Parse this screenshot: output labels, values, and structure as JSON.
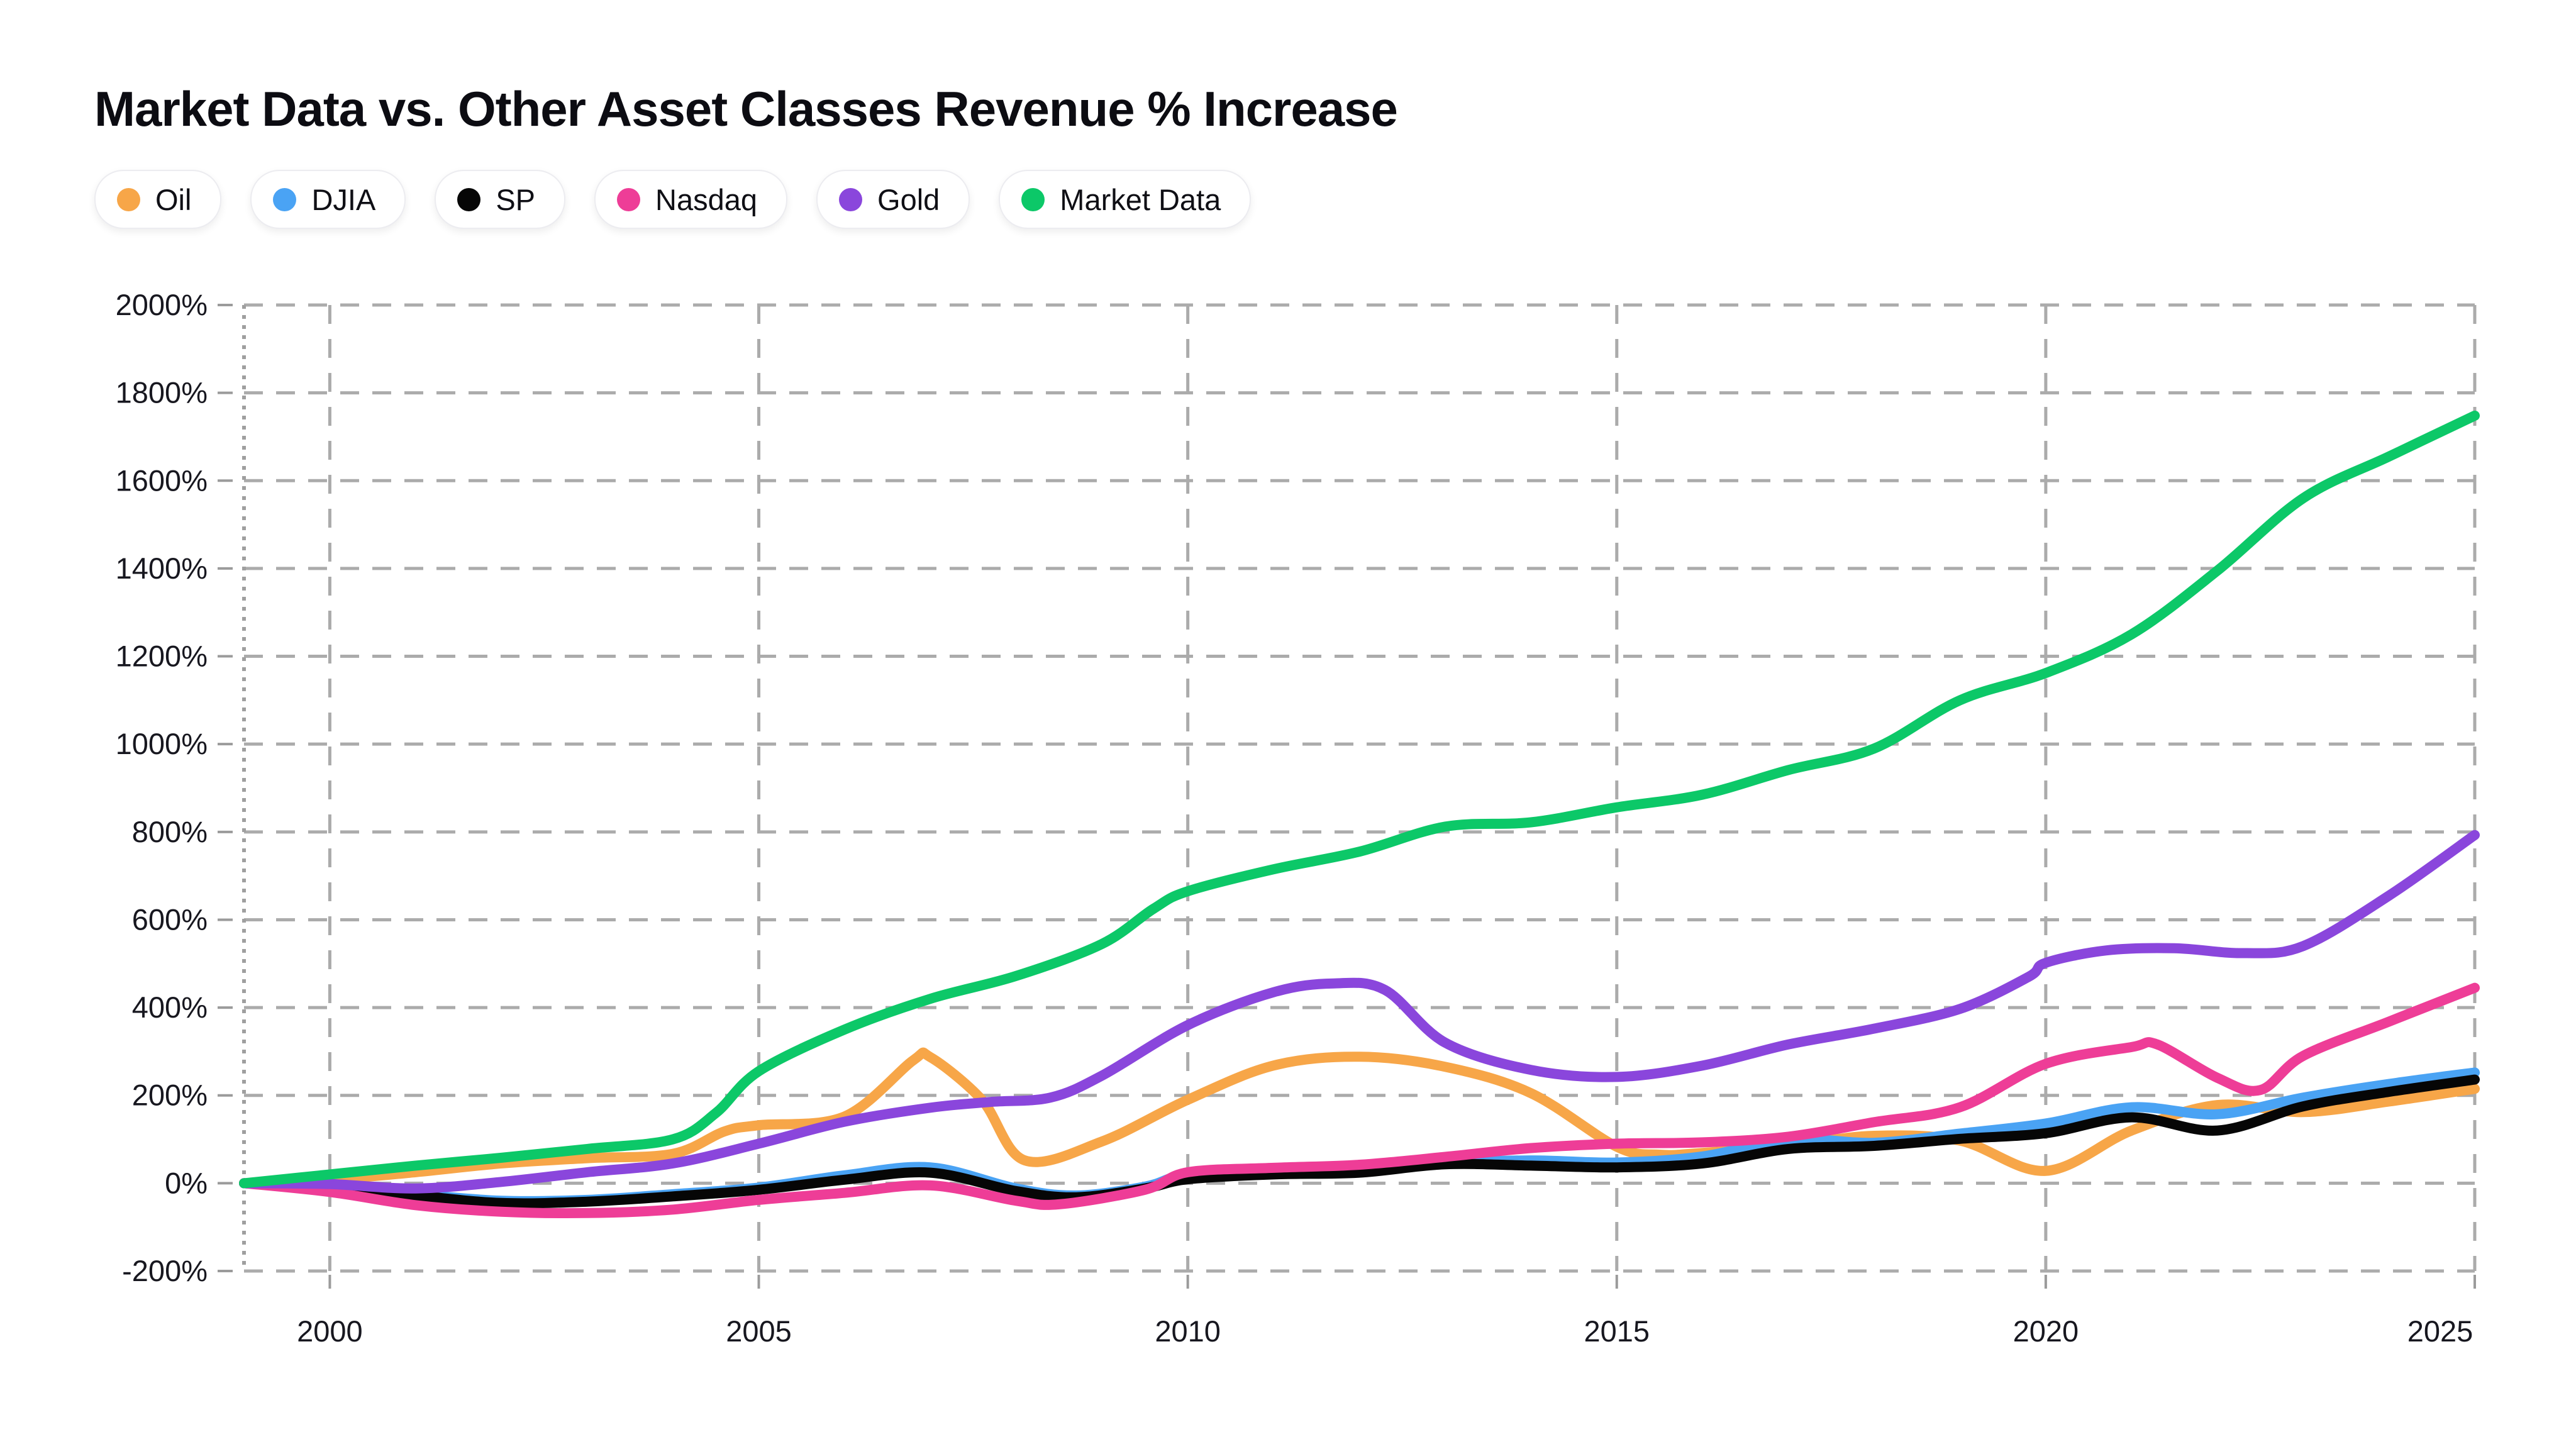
{
  "page": {
    "background": "#ffffff"
  },
  "legend": {
    "items": [
      {
        "label": "Oil",
        "color": "#F7A648"
      },
      {
        "label": "DJIA",
        "color": "#4AA3F4"
      },
      {
        "label": "SP",
        "color": "#060606"
      },
      {
        "label": "Nasdaq",
        "color": "#EE3D97"
      },
      {
        "label": "Gold",
        "color": "#8A46DC"
      },
      {
        "label": "Market Data",
        "color": "#0CC868"
      }
    ]
  },
  "chart_data": {
    "type": "line",
    "title": "Market Data vs. Other Asset Classes Revenue % Increase",
    "xlabel": "",
    "ylabel": "",
    "xlim": [
      1999,
      2025
    ],
    "ylim": [
      -200,
      2000
    ],
    "x_ticks": [
      2000,
      2005,
      2010,
      2015,
      2020,
      2025
    ],
    "y_ticks": [
      -200,
      0,
      200,
      400,
      600,
      800,
      1000,
      1200,
      1400,
      1600,
      1800,
      2000
    ],
    "y_tick_suffix": "%",
    "grid": "dashed",
    "legend_position": "top-left",
    "grid_color": "#ABABAB",
    "series": [
      {
        "name": "Oil",
        "color": "#F7A648",
        "points": [
          [
            1999,
            0
          ],
          [
            2000,
            8
          ],
          [
            2001,
            25
          ],
          [
            2002,
            45
          ],
          [
            2003,
            57
          ],
          [
            2004,
            67
          ],
          [
            2004.6,
            118
          ],
          [
            2005,
            132
          ],
          [
            2006,
            152
          ],
          [
            2006.8,
            280
          ],
          [
            2007,
            287
          ],
          [
            2007.6,
            190
          ],
          [
            2008.1,
            52
          ],
          [
            2009,
            95
          ],
          [
            2010,
            190
          ],
          [
            2011,
            268
          ],
          [
            2012,
            288
          ],
          [
            2013,
            265
          ],
          [
            2014,
            205
          ],
          [
            2015,
            83
          ],
          [
            2015.5,
            65
          ],
          [
            2016,
            69
          ],
          [
            2017,
            86
          ],
          [
            2018,
            108
          ],
          [
            2019,
            97
          ],
          [
            2020,
            28
          ],
          [
            2021,
            120
          ],
          [
            2022,
            178
          ],
          [
            2023,
            162
          ],
          [
            2024,
            186
          ],
          [
            2025,
            215
          ]
        ]
      },
      {
        "name": "DJIA",
        "color": "#4AA3F4",
        "points": [
          [
            1999,
            0
          ],
          [
            2000,
            -8
          ],
          [
            2001,
            -25
          ],
          [
            2002,
            -40
          ],
          [
            2003,
            -38
          ],
          [
            2004,
            -25
          ],
          [
            2005,
            -10
          ],
          [
            2006,
            18
          ],
          [
            2007,
            36
          ],
          [
            2008,
            -12
          ],
          [
            2008.7,
            -28
          ],
          [
            2009.5,
            -8
          ],
          [
            2010,
            20
          ],
          [
            2011,
            25
          ],
          [
            2012,
            28
          ],
          [
            2013,
            45
          ],
          [
            2014,
            52
          ],
          [
            2015,
            47
          ],
          [
            2016,
            61
          ],
          [
            2017,
            100
          ],
          [
            2018,
            92
          ],
          [
            2019,
            113
          ],
          [
            2020,
            136
          ],
          [
            2021,
            173
          ],
          [
            2022,
            157
          ],
          [
            2023,
            195
          ],
          [
            2024,
            226
          ],
          [
            2025,
            252
          ]
        ]
      },
      {
        "name": "SP",
        "color": "#060606",
        "points": [
          [
            1999,
            0
          ],
          [
            2000,
            -10
          ],
          [
            2001,
            -28
          ],
          [
            2002,
            -45
          ],
          [
            2003,
            -42
          ],
          [
            2004,
            -30
          ],
          [
            2005,
            -15
          ],
          [
            2006,
            8
          ],
          [
            2007,
            24
          ],
          [
            2008,
            -18
          ],
          [
            2008.7,
            -32
          ],
          [
            2009.5,
            -12
          ],
          [
            2010,
            9
          ],
          [
            2011,
            20
          ],
          [
            2012,
            24
          ],
          [
            2013,
            43
          ],
          [
            2014,
            40
          ],
          [
            2015,
            36
          ],
          [
            2016,
            45
          ],
          [
            2017,
            78
          ],
          [
            2018,
            85
          ],
          [
            2019,
            101
          ],
          [
            2020,
            114
          ],
          [
            2021,
            150
          ],
          [
            2022,
            120
          ],
          [
            2023,
            175
          ],
          [
            2024,
            208
          ],
          [
            2025,
            236
          ]
        ]
      },
      {
        "name": "Nasdaq",
        "color": "#EE3D97",
        "points": [
          [
            1999,
            0
          ],
          [
            2000,
            -20
          ],
          [
            2001,
            -50
          ],
          [
            2002,
            -65
          ],
          [
            2003,
            -68
          ],
          [
            2004,
            -60
          ],
          [
            2005,
            -38
          ],
          [
            2006,
            -22
          ],
          [
            2007,
            -5
          ],
          [
            2008,
            -40
          ],
          [
            2008.5,
            -48
          ],
          [
            2009.5,
            -15
          ],
          [
            2010,
            25
          ],
          [
            2011,
            35
          ],
          [
            2012,
            42
          ],
          [
            2013,
            60
          ],
          [
            2014,
            80
          ],
          [
            2015,
            90
          ],
          [
            2016,
            93
          ],
          [
            2017,
            106
          ],
          [
            2018,
            139
          ],
          [
            2019,
            173
          ],
          [
            2020,
            272
          ],
          [
            2021,
            310
          ],
          [
            2021.3,
            316
          ],
          [
            2022,
            240
          ],
          [
            2022.5,
            212
          ],
          [
            2023,
            290
          ],
          [
            2024,
            368
          ],
          [
            2025,
            445
          ]
        ]
      },
      {
        "name": "Gold",
        "color": "#8A46DC",
        "points": [
          [
            1999,
            0
          ],
          [
            2000,
            -2
          ],
          [
            2001,
            -12
          ],
          [
            2002,
            3
          ],
          [
            2003,
            25
          ],
          [
            2004,
            45
          ],
          [
            2005,
            90
          ],
          [
            2006,
            140
          ],
          [
            2007,
            172
          ],
          [
            2007.7,
            185
          ],
          [
            2008.4,
            195
          ],
          [
            2009,
            245
          ],
          [
            2010,
            360
          ],
          [
            2011,
            435
          ],
          [
            2011.7,
            455
          ],
          [
            2012.3,
            440
          ],
          [
            2013,
            320
          ],
          [
            2014,
            258
          ],
          [
            2015,
            242
          ],
          [
            2016,
            268
          ],
          [
            2017,
            316
          ],
          [
            2018,
            352
          ],
          [
            2019,
            397
          ],
          [
            2019.8,
            470
          ],
          [
            2020,
            502
          ],
          [
            2020.7,
            530
          ],
          [
            2021.5,
            535
          ],
          [
            2022.3,
            524
          ],
          [
            2023,
            540
          ],
          [
            2024,
            655
          ],
          [
            2025,
            793
          ]
        ]
      },
      {
        "name": "Market Data",
        "color": "#0CC868",
        "points": [
          [
            1999,
            0
          ],
          [
            2000,
            20
          ],
          [
            2001,
            40
          ],
          [
            2002,
            58
          ],
          [
            2003,
            78
          ],
          [
            2004,
            100
          ],
          [
            2004.5,
            160
          ],
          [
            2005,
            255
          ],
          [
            2006,
            350
          ],
          [
            2007,
            420
          ],
          [
            2008,
            472
          ],
          [
            2009,
            545
          ],
          [
            2009.6,
            625
          ],
          [
            2010,
            665
          ],
          [
            2011,
            715
          ],
          [
            2012,
            755
          ],
          [
            2013,
            812
          ],
          [
            2014,
            822
          ],
          [
            2015,
            856
          ],
          [
            2016,
            885
          ],
          [
            2017,
            941
          ],
          [
            2018,
            990
          ],
          [
            2019,
            1100
          ],
          [
            2020,
            1162
          ],
          [
            2021,
            1250
          ],
          [
            2022,
            1395
          ],
          [
            2023,
            1560
          ],
          [
            2024,
            1655
          ],
          [
            2025,
            1748
          ]
        ]
      }
    ]
  }
}
